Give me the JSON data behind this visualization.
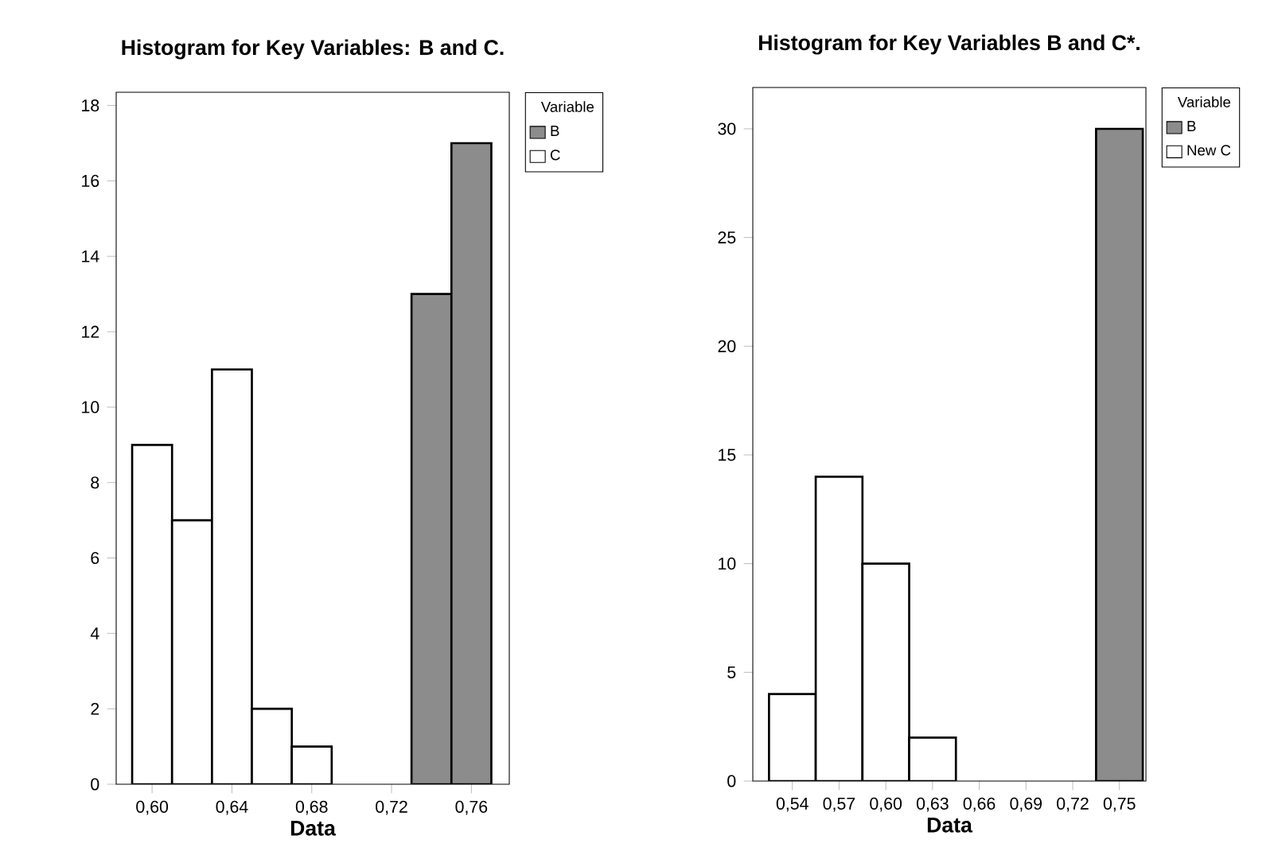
{
  "chart_data": [
    {
      "type": "histogram",
      "title": "Histogram for Key Variables: B and C.",
      "xlabel": "Data",
      "legend_title": "Variable",
      "legend": "top right",
      "grid": false,
      "bins": [
        0.59,
        0.61,
        0.63,
        0.65,
        0.67,
        0.69,
        0.71,
        0.73,
        0.75,
        0.77
      ],
      "series": [
        {
          "name": "B",
          "color": "#8c8c8c",
          "values": [
            null,
            null,
            null,
            null,
            null,
            null,
            null,
            13,
            17
          ]
        },
        {
          "name": "C",
          "color": "#ffffff",
          "values": [
            9,
            7,
            11,
            2,
            1,
            null,
            null,
            null,
            null
          ]
        }
      ],
      "xlim": [
        0.582,
        0.779
      ],
      "ylim": [
        0,
        18.35
      ],
      "xticks": [
        {
          "value": 0.6,
          "label": "0,60"
        },
        {
          "value": 0.64,
          "label": "0,64"
        },
        {
          "value": 0.68,
          "label": "0,68"
        },
        {
          "value": 0.72,
          "label": "0,72"
        },
        {
          "value": 0.76,
          "label": "0,76"
        }
      ],
      "yticks": [
        0,
        2,
        4,
        6,
        8,
        10,
        12,
        14,
        16,
        18
      ]
    },
    {
      "type": "histogram",
      "title": "Histogram for Key Variables B and C*.",
      "xlabel": "Data",
      "legend_title": "Variable",
      "legend": "top right",
      "grid": false,
      "bins": [
        0.525,
        0.555,
        0.585,
        0.615,
        0.645,
        0.675,
        0.705,
        0.735,
        0.765
      ],
      "series": [
        {
          "name": "B",
          "color": "#8c8c8c",
          "values": [
            null,
            null,
            null,
            null,
            null,
            null,
            null,
            30
          ]
        },
        {
          "name": "New C",
          "color": "#ffffff",
          "values": [
            4,
            14,
            10,
            2,
            null,
            null,
            null,
            null
          ]
        }
      ],
      "xlim": [
        0.5146,
        0.767
      ],
      "ylim": [
        0,
        31.9
      ],
      "xticks": [
        {
          "value": 0.54,
          "label": "0,54"
        },
        {
          "value": 0.57,
          "label": "0,57"
        },
        {
          "value": 0.6,
          "label": "0,60"
        },
        {
          "value": 0.63,
          "label": "0,63"
        },
        {
          "value": 0.66,
          "label": "0,66"
        },
        {
          "value": 0.69,
          "label": "0,69"
        },
        {
          "value": 0.72,
          "label": "0,72"
        },
        {
          "value": 0.75,
          "label": "0,75"
        }
      ],
      "yticks": [
        0,
        5,
        10,
        15,
        20,
        25,
        30
      ]
    }
  ]
}
